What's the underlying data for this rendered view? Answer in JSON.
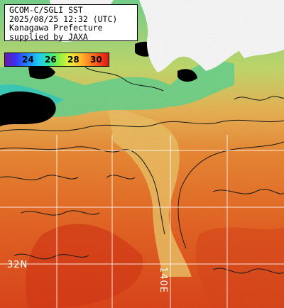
{
  "title": {
    "line1": "GCOM-C/SGLI SST",
    "line2": "2025/08/25 12:32 (UTC)",
    "line3": "Kanagawa Prefecture",
    "line4": "supplied by JAXA"
  },
  "legend": {
    "labels": [
      "24",
      "26",
      "28",
      "30"
    ],
    "colors": {
      "cold": "#3a2ff0",
      "cool": "#2fe6a0",
      "warm": "#ffc030",
      "hot": "#d81a18"
    }
  },
  "grid": {
    "lat_label": "32N",
    "lon_label": "140E"
  },
  "colors": {
    "land": "#ffffff",
    "cloud": "#000000",
    "sea_warm": "#f07c2a",
    "sea_hot": "#e0461c",
    "sea_mid": "#f0c060",
    "coastal_cool": "#9be07a",
    "gridline": "#ffffff"
  }
}
